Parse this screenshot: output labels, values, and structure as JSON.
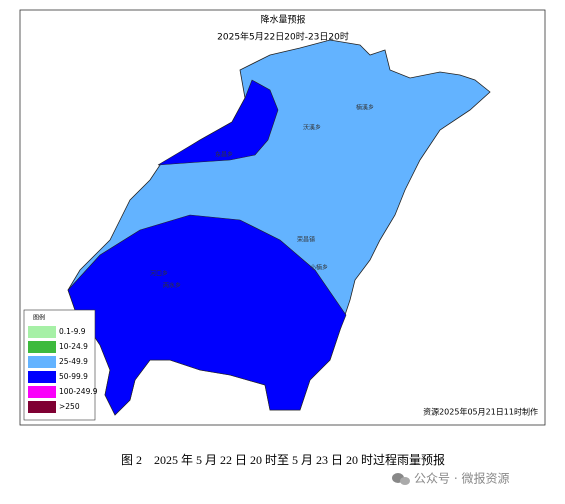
{
  "header": {
    "title": "降水量预报",
    "subtitle": "2025年5月22日20时-23日20时"
  },
  "places": [
    "东昌乡",
    "沃溪乡",
    "楠溪乡",
    "荣昌镇",
    "小楠乡",
    "河口乡",
    "两水乡"
  ],
  "legend": {
    "title": "图例",
    "items": [
      {
        "label": "0.1-9.9",
        "color": "#a6f0a6"
      },
      {
        "label": "10-24.9",
        "color": "#3dba3d"
      },
      {
        "label": "25-49.9",
        "color": "#63b3ff"
      },
      {
        "label": "50-99.9",
        "color": "#0000fe"
      },
      {
        "label": "100-249.9",
        "color": "#fa00fa"
      },
      {
        "label": ">250",
        "color": "#7f0033"
      }
    ]
  },
  "credit": "资源2025年05月21日11时制作",
  "caption": "图 2　2025 年 5 月 22 日 20 时至 5 月 23 日 20 时过程雨量预报",
  "watermark": "公众号 · 微报资源"
}
